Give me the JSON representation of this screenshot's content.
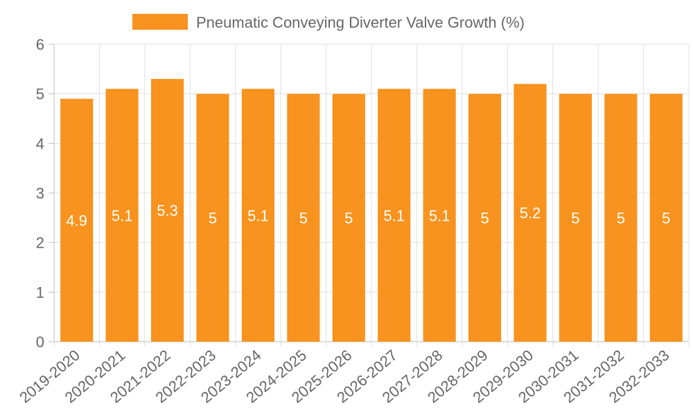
{
  "chart_data": {
    "type": "bar",
    "categories": [
      "2019-2020",
      "2020-2021",
      "2021-2022",
      "2022-2023",
      "2023-2024",
      "2024-2025",
      "2025-2026",
      "2026-2027",
      "2027-2028",
      "2028-2029",
      "2029-2030",
      "2030-2031",
      "2031-2032",
      "2032-2033"
    ],
    "series": [
      {
        "name": "Pneumatic Conveying Diverter Valve Growth (%)",
        "values": [
          4.9,
          5.1,
          5.3,
          5,
          5.1,
          5,
          5,
          5.1,
          5.1,
          5,
          5.2,
          5,
          5,
          5
        ],
        "color": "#f7931e"
      }
    ],
    "ylim": [
      0,
      6
    ],
    "yticks": [
      0,
      1,
      2,
      3,
      4,
      5,
      6
    ],
    "grid": true,
    "legend_position": "top-center",
    "data_labels": true
  }
}
